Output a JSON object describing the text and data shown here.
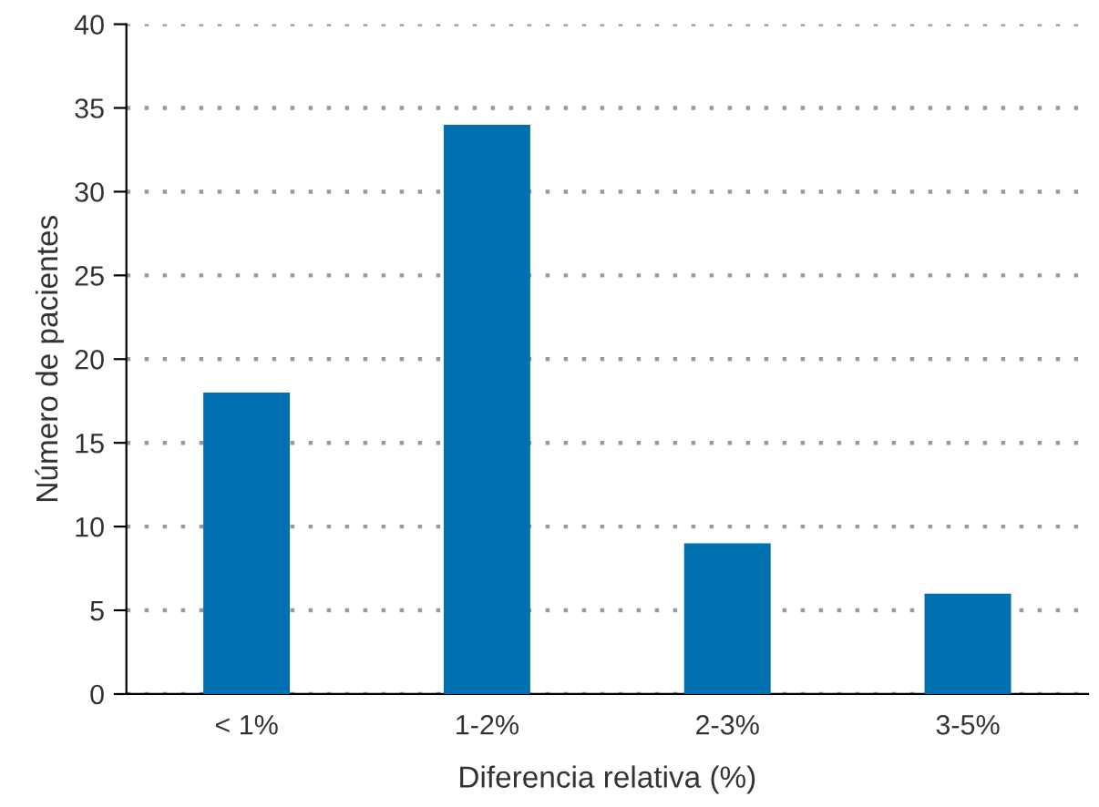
{
  "chart_data": {
    "type": "bar",
    "categories": [
      "< 1%",
      "1-2%",
      "2-3%",
      "3-5%"
    ],
    "values": [
      18,
      34,
      9,
      6
    ],
    "color": "#0070b0",
    "xlabel": "Diferencia relativa (%)",
    "ylabel": "Número de pacientes",
    "ylim": [
      0,
      40
    ],
    "yticks": [
      0,
      5,
      10,
      15,
      20,
      25,
      30,
      35,
      40
    ],
    "grid": "y"
  }
}
